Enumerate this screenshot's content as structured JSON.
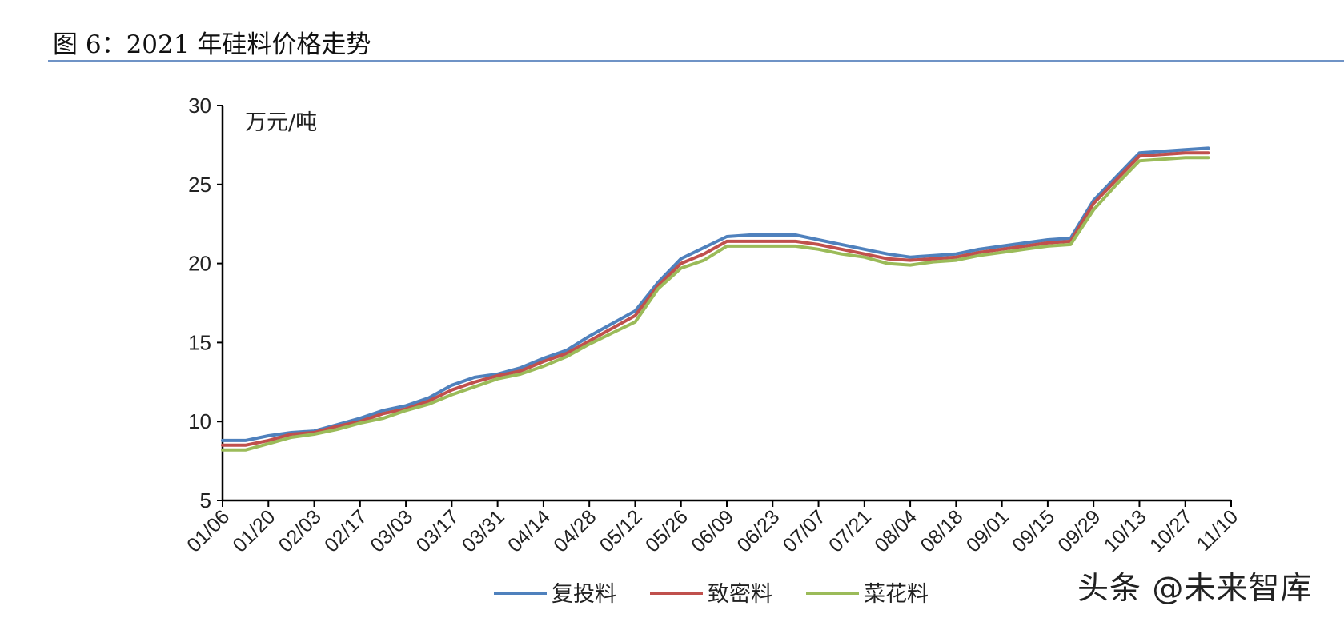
{
  "figure": {
    "title": "图 6：2021 年硅料价格走势"
  },
  "watermark": "头条 @未来智库",
  "chart_data": {
    "type": "line",
    "unit_label": "万元/吨",
    "ylim": [
      5,
      30
    ],
    "yticks": [
      5,
      10,
      15,
      20,
      25,
      30
    ],
    "x_tick_labels": [
      "01/06",
      "01/20",
      "02/03",
      "02/17",
      "03/03",
      "03/17",
      "03/31",
      "04/14",
      "04/28",
      "05/12",
      "05/26",
      "06/09",
      "06/23",
      "07/07",
      "07/21",
      "08/04",
      "08/18",
      "09/01",
      "09/15",
      "09/29",
      "10/13",
      "10/27",
      "11/10"
    ],
    "x": [
      "01/06",
      "01/13",
      "01/20",
      "01/27",
      "02/03",
      "02/10",
      "02/17",
      "02/24",
      "03/03",
      "03/10",
      "03/17",
      "03/24",
      "03/31",
      "04/07",
      "04/14",
      "04/21",
      "04/28",
      "05/05",
      "05/12",
      "05/19",
      "05/26",
      "06/02",
      "06/09",
      "06/16",
      "06/23",
      "06/30",
      "07/07",
      "07/14",
      "07/21",
      "07/28",
      "08/04",
      "08/11",
      "08/18",
      "08/25",
      "09/01",
      "09/08",
      "09/15",
      "09/22",
      "09/29",
      "10/06",
      "10/13",
      "10/20",
      "10/27",
      "11/03"
    ],
    "series": [
      {
        "name": "复投料",
        "color": "#4f81bd",
        "values": [
          8.8,
          8.8,
          9.1,
          9.3,
          9.4,
          9.8,
          10.2,
          10.7,
          11.0,
          11.5,
          12.3,
          12.8,
          13.0,
          13.4,
          14.0,
          14.5,
          15.4,
          16.2,
          17.0,
          18.8,
          20.3,
          21.0,
          21.7,
          21.8,
          21.8,
          21.8,
          21.5,
          21.2,
          20.9,
          20.6,
          20.4,
          20.5,
          20.6,
          20.9,
          21.1,
          21.3,
          21.5,
          21.6,
          24.0,
          25.5,
          27.0,
          27.1,
          27.2,
          27.3
        ]
      },
      {
        "name": "致密料",
        "color": "#c0504d",
        "values": [
          8.5,
          8.5,
          8.8,
          9.2,
          9.3,
          9.7,
          10.0,
          10.5,
          10.8,
          11.3,
          12.0,
          12.5,
          12.9,
          13.2,
          13.8,
          14.3,
          15.1,
          15.9,
          16.7,
          18.6,
          20.0,
          20.6,
          21.4,
          21.4,
          21.4,
          21.4,
          21.2,
          20.9,
          20.6,
          20.3,
          20.2,
          20.3,
          20.4,
          20.7,
          20.9,
          21.1,
          21.3,
          21.4,
          23.8,
          25.3,
          26.8,
          26.9,
          27.0,
          27.0
        ]
      },
      {
        "name": "菜花料",
        "color": "#9bbb59",
        "values": [
          8.2,
          8.2,
          8.6,
          9.0,
          9.2,
          9.5,
          9.9,
          10.2,
          10.7,
          11.1,
          11.7,
          12.2,
          12.7,
          13.0,
          13.5,
          14.1,
          14.9,
          15.6,
          16.3,
          18.4,
          19.7,
          20.2,
          21.1,
          21.1,
          21.1,
          21.1,
          20.9,
          20.6,
          20.4,
          20.0,
          19.9,
          20.1,
          20.2,
          20.5,
          20.7,
          20.9,
          21.1,
          21.2,
          23.4,
          25.0,
          26.5,
          26.6,
          26.7,
          26.7
        ]
      }
    ],
    "legend_position": "bottom-center",
    "grid": false
  }
}
